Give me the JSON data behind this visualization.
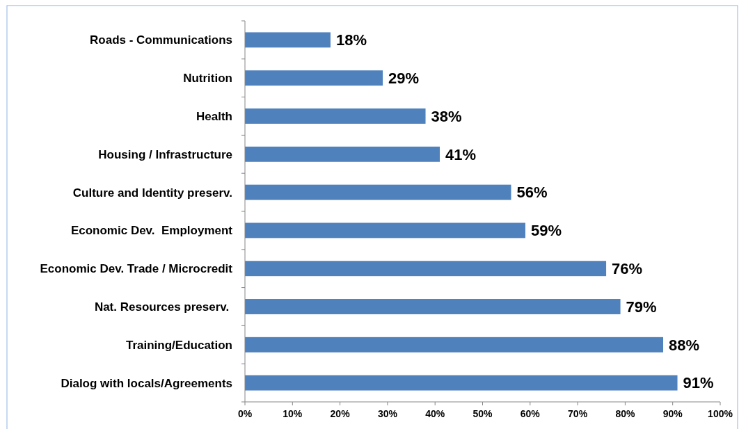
{
  "chart_data": {
    "type": "bar",
    "orientation": "horizontal",
    "categories": [
      "Roads - Communications",
      "Nutrition",
      "Health",
      "Housing / Infrastructure",
      "Culture and Identity preserv.",
      "Economic Dev.  Employment",
      "Economic Dev. Trade / Microcredit",
      "Nat. Resources preserv. ",
      "Training/Education",
      "Dialog with locals/Agreements"
    ],
    "values": [
      18,
      29,
      38,
      41,
      56,
      59,
      76,
      79,
      88,
      91
    ],
    "value_labels": [
      "18%",
      "29%",
      "38%",
      "41%",
      "56%",
      "59%",
      "76%",
      "79%",
      "88%",
      "91%"
    ],
    "color": "#4f81bd",
    "xlim": [
      0,
      100
    ],
    "xticks": [
      {
        "value": 0,
        "label": "0%"
      },
      {
        "value": 10,
        "label": "10%"
      },
      {
        "value": 20,
        "label": "20%"
      },
      {
        "value": 30,
        "label": "30%"
      },
      {
        "value": 40,
        "label": "40%"
      },
      {
        "value": 50,
        "label": "50%"
      },
      {
        "value": 60,
        "label": "60%"
      },
      {
        "value": 70,
        "label": "70%"
      },
      {
        "value": 80,
        "label": "80%"
      },
      {
        "value": 90,
        "label": "90%"
      },
      {
        "value": 100,
        "label": "100%"
      }
    ],
    "grid": false
  }
}
